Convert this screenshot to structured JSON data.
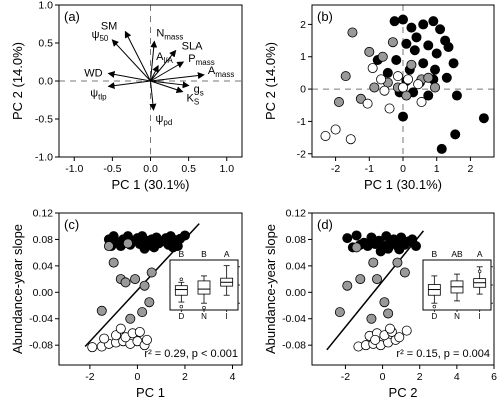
{
  "figure": {
    "panels": [
      "a",
      "b",
      "c",
      "d"
    ]
  },
  "chart_data": [
    {
      "panel": "a",
      "panel_label": "(a)",
      "type": "biplot",
      "xlabel": "PC 1 (30.1%)",
      "ylabel": "PC 2 (14.0%)",
      "xlim": [
        -1.2,
        1.2
      ],
      "ylim": [
        -1.0,
        1.0
      ],
      "xticks": [
        -1.0,
        -0.5,
        0.0,
        0.5,
        1.0
      ],
      "yticks": [
        -1.0,
        -0.5,
        0.0,
        0.5,
        1.0
      ],
      "xtick_labels": [
        "-1.0",
        "-0.5",
        "0.0",
        "0.5",
        "1.0"
      ],
      "ytick_labels": [
        "-1.0",
        "-0.5",
        "0.0",
        "0.5",
        "1.0"
      ],
      "vectors": [
        {
          "label": "SM",
          "sub": "",
          "x": -0.33,
          "y": 0.65
        },
        {
          "label": "ψ",
          "sub": "50",
          "x": -0.5,
          "y": 0.54
        },
        {
          "label": "WD",
          "sub": "",
          "x": -0.55,
          "y": 0.1
        },
        {
          "label": "ψ",
          "sub": "tlp",
          "x": -0.55,
          "y": -0.07
        },
        {
          "label": "N",
          "sub": "mass",
          "x": 0.05,
          "y": 0.52
        },
        {
          "label": "SLA",
          "sub": "",
          "x": 0.33,
          "y": 0.4
        },
        {
          "label": "P",
          "sub": "mass",
          "x": 0.43,
          "y": 0.25
        },
        {
          "label": "A",
          "sub": "l/A",
          "x": 0.1,
          "y": 0.2
        },
        {
          "label": "A",
          "sub": "mass",
          "x": 0.7,
          "y": 0.08
        },
        {
          "label": "g",
          "sub": "s",
          "x": 0.5,
          "y": -0.06
        },
        {
          "label": "K",
          "sub": "S",
          "x": 0.42,
          "y": -0.14
        },
        {
          "label": "ψ",
          "sub": "pd",
          "x": 0.04,
          "y": -0.38
        }
      ]
    },
    {
      "panel": "b",
      "panel_label": "(b)",
      "type": "scatter",
      "xlabel": "PC 1 (30.1%)",
      "ylabel": "PC 2 (14.0%)",
      "xlim": [
        -2.7,
        2.7
      ],
      "ylim": [
        -2.1,
        2.6
      ],
      "xticks": [
        -2,
        -1,
        0,
        1,
        2
      ],
      "yticks": [
        -2,
        -1,
        0,
        1,
        2
      ],
      "xtick_labels": [
        "-2",
        "-1",
        "0",
        "1",
        "2"
      ],
      "ytick_labels": [
        "-2",
        "-1",
        "0",
        "1",
        "2"
      ],
      "series": [
        {
          "group": "I",
          "fill": "#000000",
          "x": [
            -0.25,
            0.0,
            0.25,
            0.6,
            0.9,
            1.1,
            1.25,
            0.1,
            0.35,
            0.75,
            1.0,
            1.35,
            -0.75,
            -0.2,
            0.2,
            0.6,
            0.95,
            1.5,
            -0.45,
            0.1,
            0.5,
            0.9,
            1.3,
            -0.1,
            0.3,
            0.75,
            1.6,
            2.4,
            1.15,
            0.0,
            1.55,
            0.4
          ],
          "y": [
            2.1,
            2.15,
            1.9,
            2.0,
            2.1,
            1.85,
            1.5,
            1.4,
            1.2,
            1.35,
            1.1,
            1.3,
            0.9,
            0.9,
            0.6,
            0.8,
            0.6,
            0.8,
            0.5,
            0.25,
            0.2,
            0.3,
            0.35,
            -0.1,
            -0.1,
            -0.2,
            -0.2,
            -0.9,
            -1.85,
            -0.85,
            -1.4,
            1.6
          ]
        },
        {
          "group": "N",
          "fill": "#999999",
          "x": [
            -1.5,
            -1.0,
            -0.6,
            -0.3,
            0.25,
            0.55,
            0.75,
            0.95,
            -1.7,
            -0.85,
            -0.45,
            -0.15,
            -1.9,
            -1.25,
            0.1
          ],
          "y": [
            1.75,
            1.15,
            1.0,
            1.45,
            0.75,
            0.3,
            0.35,
            0.05,
            0.4,
            0.05,
            0.2,
            0.05,
            -0.4,
            -0.3,
            -0.2
          ]
        },
        {
          "group": "D",
          "fill": "#ffffff",
          "x": [
            -0.9,
            -0.65,
            -0.15,
            0.15,
            0.45,
            -0.55,
            -1.05,
            -0.4,
            -2.3,
            -2.0,
            -1.55,
            0.0,
            0.55
          ],
          "y": [
            0.65,
            0.3,
            0.4,
            0.3,
            0.15,
            -0.05,
            -0.45,
            -0.6,
            -1.45,
            -1.25,
            -1.55,
            0.05,
            -0.4
          ]
        }
      ]
    },
    {
      "panel": "c",
      "panel_label": "(c)",
      "type": "scatter",
      "xlabel": "PC 1",
      "ylabel": "Abundance-year slope",
      "xlim": [
        -3.3,
        4.4
      ],
      "ylim": [
        -0.11,
        0.12
      ],
      "xticks": [
        -2,
        0,
        2,
        4
      ],
      "yticks": [
        -0.08,
        -0.04,
        0.0,
        0.04,
        0.08,
        0.12
      ],
      "xtick_labels": [
        "-2",
        "0",
        "2",
        "4"
      ],
      "ytick_labels": [
        "-0.08",
        "-0.04",
        "0.00",
        "0.04",
        "0.08",
        "0.12"
      ],
      "annotation": "r² = 0.29, p < 0.001",
      "regression": {
        "x": [
          -2.2,
          2.6
        ],
        "y": [
          -0.082,
          0.104
        ]
      },
      "series": [
        {
          "group": "I",
          "fill": "#000000",
          "x": [
            -1.2,
            -1.0,
            -0.8,
            -0.6,
            -0.4,
            -0.2,
            0.0,
            0.2,
            0.4,
            0.6,
            0.8,
            1.0,
            1.2,
            1.4,
            1.6,
            1.8,
            2.0,
            -0.7,
            -0.3,
            0.1,
            0.5,
            0.9,
            1.3,
            1.7,
            -1.1,
            0.3,
            0.7,
            1.5
          ],
          "y": [
            0.08,
            0.085,
            0.075,
            0.08,
            0.085,
            0.078,
            0.082,
            0.085,
            0.078,
            0.08,
            0.083,
            0.077,
            0.082,
            0.085,
            0.079,
            0.081,
            0.086,
            0.07,
            0.072,
            0.073,
            0.071,
            0.074,
            0.072,
            0.07,
            0.07,
            0.066,
            0.068,
            0.068
          ]
        },
        {
          "group": "N",
          "fill": "#999999",
          "x": [
            -1.2,
            -0.4,
            -1.0,
            -0.7,
            -0.5,
            -0.1,
            0.3,
            0.5,
            -1.5,
            0.2,
            -0.3,
            0.6
          ],
          "y": [
            0.07,
            0.074,
            0.045,
            0.02,
            0.015,
            0.02,
            0.01,
            -0.015,
            -0.028,
            -0.03,
            -0.04,
            0.03
          ]
        },
        {
          "group": "D",
          "fill": "#ffffff",
          "x": [
            -1.9,
            -1.5,
            -1.2,
            -0.9,
            -0.6,
            -0.3,
            0.0,
            0.3,
            -0.9,
            -0.5,
            -0.2,
            0.1,
            -1.4,
            -0.7,
            0.4
          ],
          "y": [
            -0.083,
            -0.082,
            -0.078,
            -0.076,
            -0.074,
            -0.078,
            -0.074,
            -0.08,
            -0.065,
            -0.068,
            -0.062,
            -0.06,
            -0.07,
            -0.055,
            -0.072
          ]
        }
      ],
      "inset": {
        "categories": [
          "D",
          "N",
          "I"
        ],
        "letters": [
          "B",
          "B",
          "A"
        ],
        "boxes": [
          {
            "whislo": -0.075,
            "q1": -0.045,
            "med": -0.02,
            "q3": -0.003,
            "whishi": 0.012,
            "fliers": [
              -0.095,
              0.025
            ]
          },
          {
            "whislo": -0.08,
            "q1": -0.04,
            "med": -0.018,
            "q3": 0.018,
            "whishi": 0.04,
            "fliers": [
              -0.1
            ]
          },
          {
            "whislo": -0.045,
            "q1": -0.005,
            "med": 0.012,
            "q3": 0.03,
            "whishi": 0.085,
            "fliers": []
          }
        ]
      }
    },
    {
      "panel": "d",
      "panel_label": "(d)",
      "type": "scatter",
      "xlabel": "PC 2",
      "ylabel": "Abundance-year slope",
      "xlim": [
        -3.8,
        6.0
      ],
      "ylim": [
        -0.11,
        0.12
      ],
      "xticks": [
        -2,
        0,
        2,
        4,
        6
      ],
      "yticks": [
        -0.08,
        -0.04,
        0.0,
        0.04,
        0.08,
        0.12
      ],
      "xtick_labels": [
        "-2",
        "0",
        "2",
        "4",
        "6"
      ],
      "ytick_labels": [
        "-0.08",
        "-0.04",
        "0.00",
        "0.04",
        "0.08",
        "0.12"
      ],
      "annotation": "r² = 0.15, p = 0.004",
      "regression": {
        "x": [
          -3.0,
          2.2
        ],
        "y": [
          -0.087,
          0.093
        ]
      },
      "series": [
        {
          "group": "I",
          "fill": "#000000",
          "x": [
            -1.9,
            -1.4,
            -1.0,
            -0.6,
            -0.2,
            0.2,
            0.6,
            1.0,
            1.4,
            -1.2,
            -0.8,
            -0.4,
            0.0,
            0.4,
            0.8,
            1.2,
            -1.6,
            0.3,
            1.6,
            -0.1,
            0.9,
            1.8
          ],
          "y": [
            0.082,
            0.086,
            0.075,
            0.083,
            0.078,
            0.085,
            0.08,
            0.083,
            0.077,
            0.072,
            0.07,
            0.073,
            0.071,
            0.074,
            0.07,
            0.072,
            0.068,
            0.066,
            0.08,
            0.062,
            0.065,
            0.07
          ]
        },
        {
          "group": "N",
          "fill": "#999999",
          "x": [
            -1.4,
            -0.5,
            -1.2,
            -0.3,
            0.1,
            -2.3,
            0.3,
            -0.6,
            -1.9,
            0.8,
            1.2
          ],
          "y": [
            0.068,
            0.045,
            0.02,
            0.02,
            -0.015,
            -0.03,
            -0.032,
            -0.04,
            0.01,
            0.045,
            0.03
          ]
        },
        {
          "group": "D",
          "fill": "#ffffff",
          "x": [
            -1.3,
            -0.9,
            -0.5,
            -0.1,
            0.3,
            0.7,
            -0.7,
            -0.3,
            0.1,
            0.5,
            0.9,
            1.3,
            -0.4,
            0.4
          ],
          "y": [
            -0.082,
            -0.08,
            -0.078,
            -0.08,
            -0.076,
            -0.072,
            -0.066,
            -0.062,
            -0.065,
            -0.06,
            -0.068,
            -0.058,
            -0.072,
            -0.055
          ]
        }
      ],
      "inset": {
        "categories": [
          "D",
          "N",
          "I"
        ],
        "letters": [
          "B",
          "AB",
          "A"
        ],
        "boxes": [
          {
            "whislo": -0.08,
            "q1": -0.045,
            "med": -0.02,
            "q3": 0.002,
            "whishi": 0.04,
            "fliers": [
              -0.095
            ]
          },
          {
            "whislo": -0.07,
            "q1": -0.035,
            "med": -0.008,
            "q3": 0.018,
            "whishi": 0.048,
            "fliers": []
          },
          {
            "whislo": -0.04,
            "q1": -0.01,
            "med": 0.01,
            "q3": 0.028,
            "whishi": 0.08,
            "fliers": [
              0.06
            ]
          }
        ]
      }
    }
  ]
}
